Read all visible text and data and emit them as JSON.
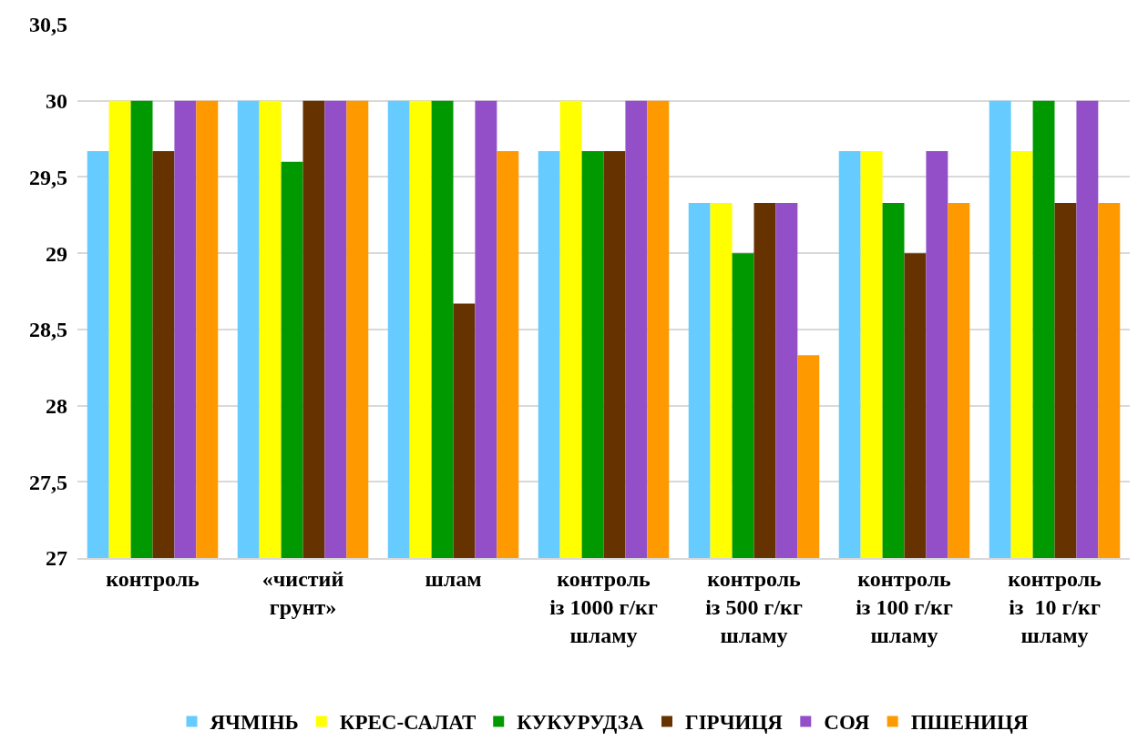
{
  "chart_data": {
    "type": "bar",
    "categories": [
      "контроль",
      "«чистий\nгрунт»",
      "шлам",
      "контроль\nіз 1000 г/кг\nшламу",
      "контроль\nіз 500 г/кг\nшламу",
      "контроль\nіз 100 г/кг\nшламу",
      "контроль\nіз  10 г/кг\nшламу"
    ],
    "series": [
      {
        "name": "ЯЧМІНЬ",
        "color": "#66ccff",
        "values": [
          29.67,
          30,
          30,
          29.67,
          29.33,
          29.67,
          30
        ]
      },
      {
        "name": "КРЕС-САЛАТ",
        "color": "#ffff00",
        "values": [
          30,
          30,
          30,
          30,
          29.33,
          29.67,
          29.67
        ]
      },
      {
        "name": "КУКУРУДЗА",
        "color": "#009900",
        "values": [
          30,
          29.6,
          30,
          29.67,
          29,
          29.33,
          30
        ]
      },
      {
        "name": "ГІРЧИЦЯ",
        "color": "#663300",
        "values": [
          29.67,
          30,
          28.67,
          29.67,
          29.33,
          29,
          29.33
        ]
      },
      {
        "name": "СОЯ",
        "color": "#934fc8",
        "values": [
          30,
          30,
          30,
          30,
          29.33,
          29.67,
          30
        ]
      },
      {
        "name": "ПШЕНИЦЯ",
        "color": "#ff9900",
        "values": [
          30,
          30,
          29.67,
          30,
          28.33,
          29.33,
          29.33
        ]
      }
    ],
    "ylim": [
      27,
      30.5
    ],
    "yticks": [
      27,
      {
        "value": 27.5,
        "label": "27,5"
      },
      28,
      {
        "value": 28.5,
        "label": "28,5"
      },
      29,
      {
        "value": 29.5,
        "label": "29,5"
      },
      30,
      {
        "value": 30.5,
        "label": "30,5"
      }
    ],
    "grid": "y",
    "legend": "bottom"
  }
}
